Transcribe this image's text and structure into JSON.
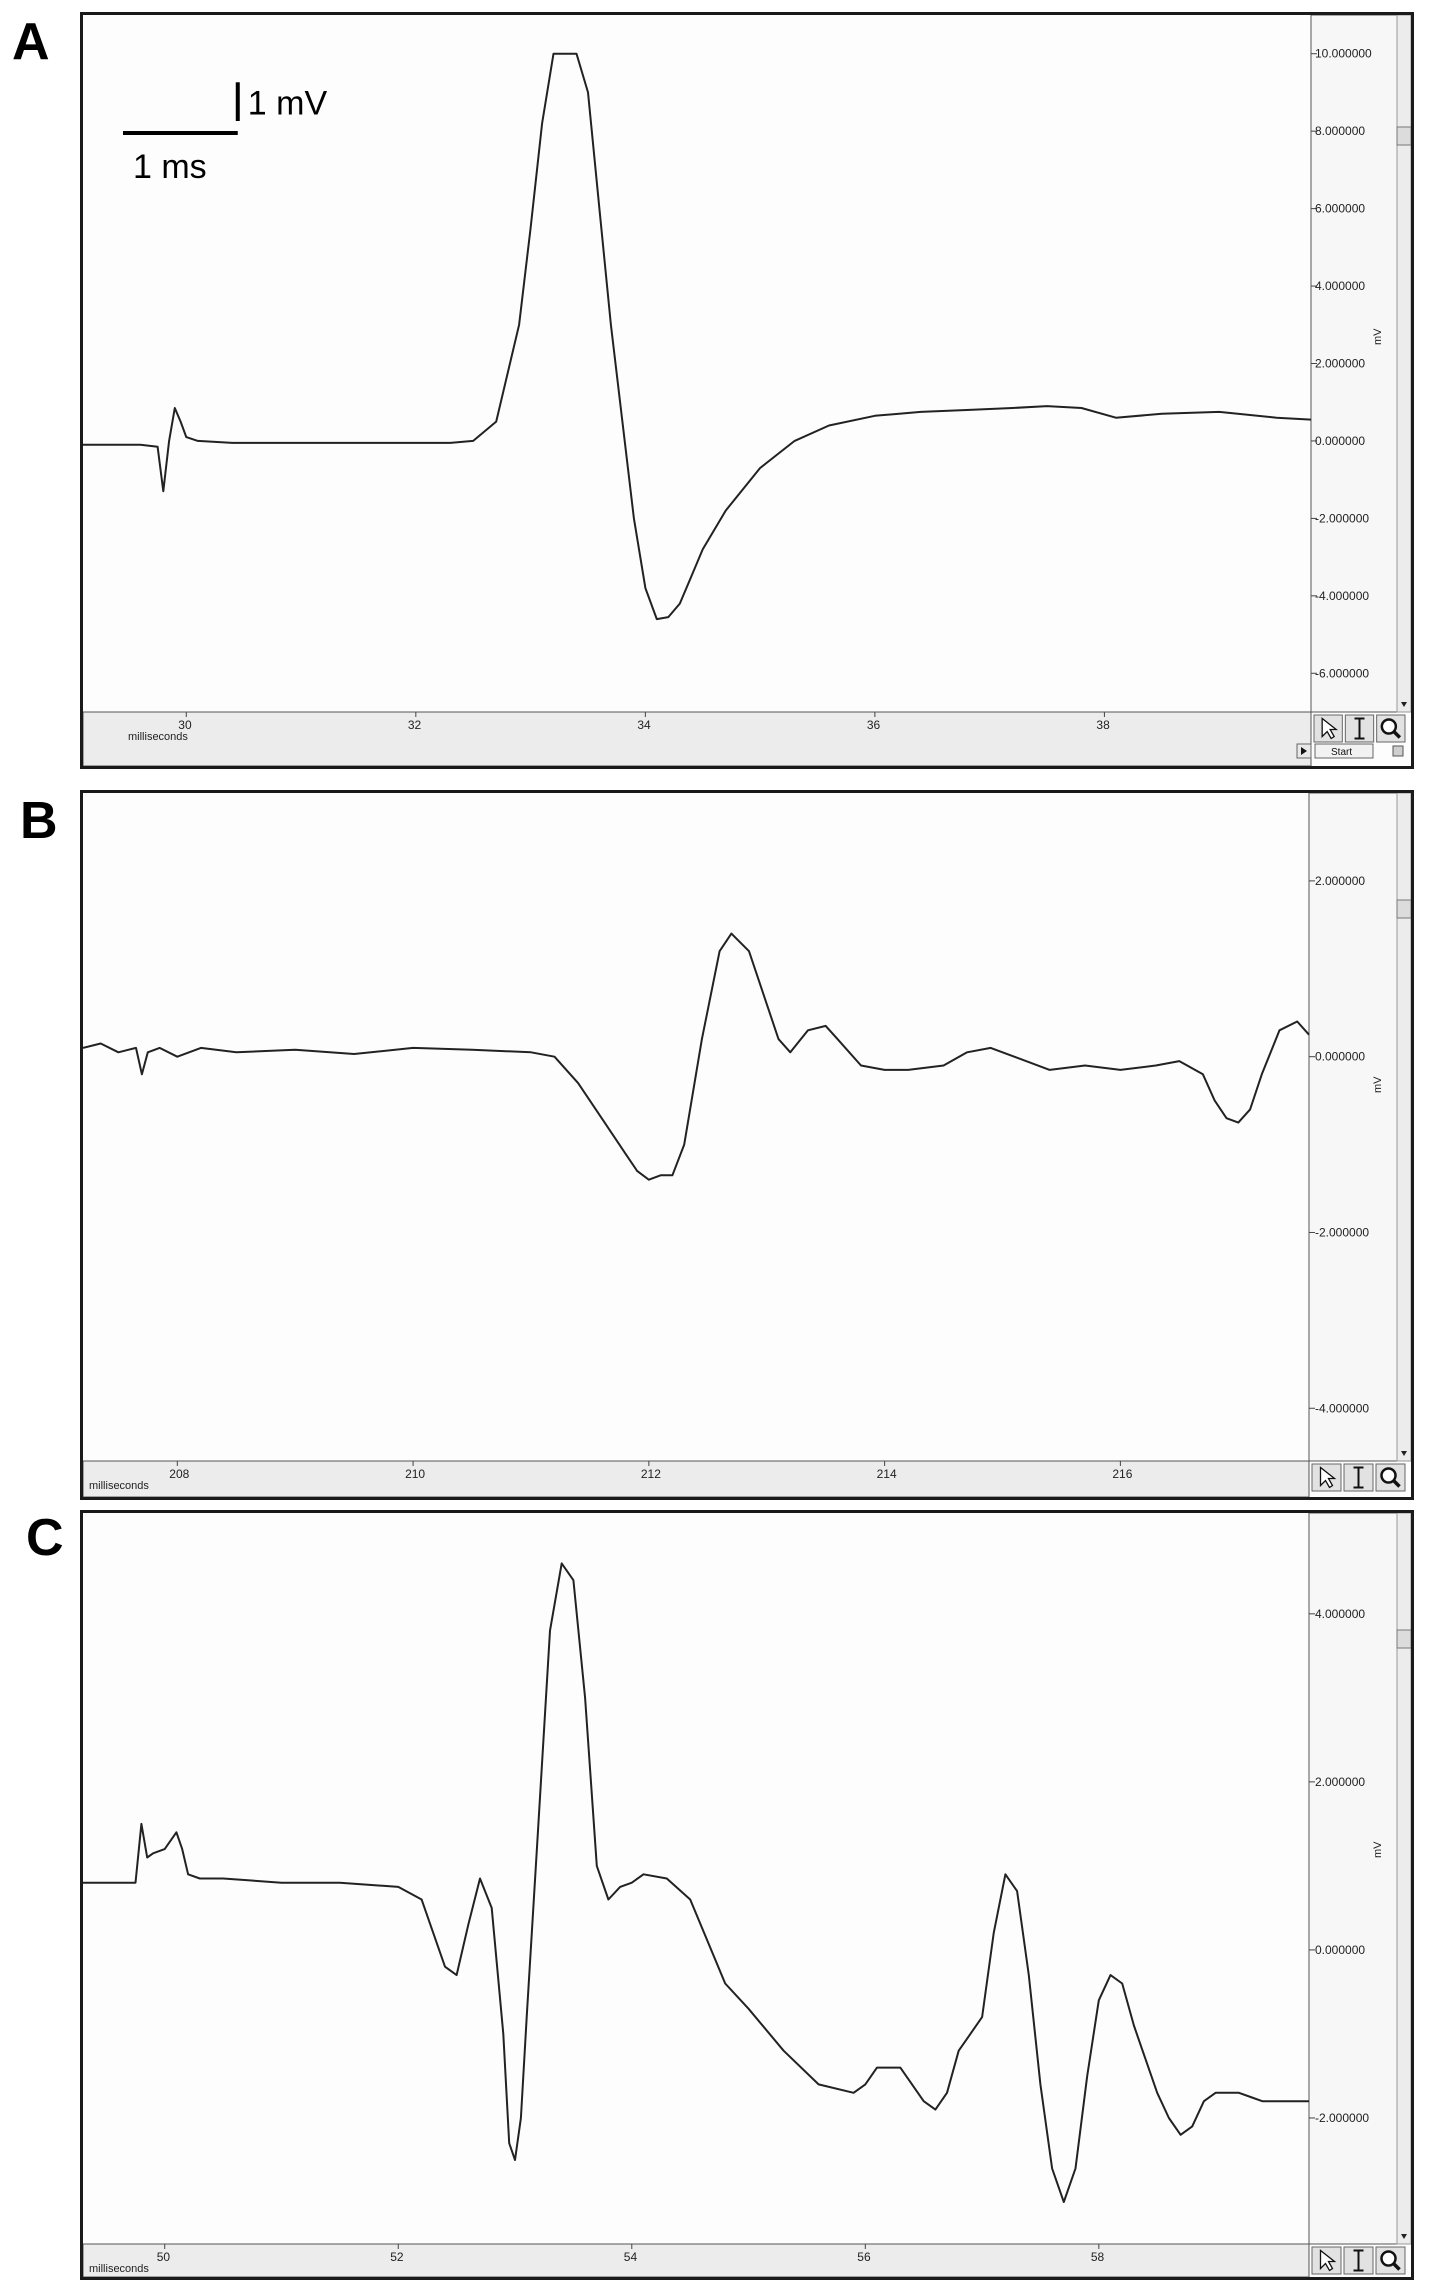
{
  "panels": [
    {
      "letter": "A",
      "scalebar": {
        "time_label": "1 ms",
        "voltage_label": "1 mV"
      }
    },
    {
      "letter": "B"
    },
    {
      "letter": "C"
    }
  ],
  "toolbar": {
    "start_label": "Start",
    "pointer_icon": "pointer-icon",
    "cursor_icon": "text-cursor-icon",
    "zoom_icon": "magnifier-icon"
  },
  "chart_data": [
    {
      "type": "line",
      "title": "",
      "xlabel": "milliseconds",
      "ylabel": "mV",
      "xlim": [
        29.1,
        39.8
      ],
      "ylim": [
        -7.0,
        11.0
      ],
      "xticks": [
        30,
        32,
        34,
        36,
        38
      ],
      "xtick_labels": [
        "30",
        "32",
        "34",
        "36",
        "38"
      ],
      "yticks": [
        10,
        8,
        6,
        4,
        2,
        0,
        -2,
        -4,
        -6
      ],
      "ytick_labels": [
        "10.000000",
        "8.000000",
        "6.000000",
        "4.000000",
        "2.000000",
        "0.000000",
        "-2.000000",
        "-4.000000",
        "-6.000000"
      ],
      "series": [
        {
          "x": [
            29.1,
            29.6,
            29.75,
            29.8,
            29.85,
            29.9,
            29.95,
            30.0,
            30.1,
            30.4,
            31.0,
            31.5,
            32.0,
            32.3,
            32.5,
            32.7,
            32.9,
            33.0,
            33.1,
            33.2,
            33.4,
            33.5,
            33.6,
            33.7,
            33.8,
            33.9,
            34.0,
            34.1,
            34.2,
            34.3,
            34.4,
            34.5,
            34.7,
            35.0,
            35.3,
            35.6,
            36.0,
            36.4,
            36.8,
            37.2,
            37.5,
            37.8,
            38.1,
            38.5,
            39.0,
            39.5,
            39.8
          ],
          "y": [
            -0.1,
            -0.1,
            -0.15,
            -1.3,
            0.0,
            0.85,
            0.5,
            0.1,
            0.0,
            -0.05,
            -0.05,
            -0.05,
            -0.05,
            -0.05,
            0.0,
            0.5,
            3.0,
            5.5,
            8.2,
            10.0,
            10.0,
            9.0,
            6.0,
            3.0,
            0.5,
            -2.0,
            -3.8,
            -4.6,
            -4.55,
            -4.2,
            -3.5,
            -2.8,
            -1.8,
            -0.7,
            0.0,
            0.4,
            0.65,
            0.75,
            0.8,
            0.85,
            0.9,
            0.85,
            0.6,
            0.7,
            0.75,
            0.6,
            0.55
          ]
        }
      ]
    },
    {
      "type": "line",
      "title": "",
      "xlabel": "milliseconds",
      "ylabel": "mV",
      "xlim": [
        207.2,
        217.6
      ],
      "ylim": [
        -4.6,
        3.0
      ],
      "xticks": [
        208,
        210,
        212,
        214,
        216
      ],
      "xtick_labels": [
        "208",
        "210",
        "212",
        "214",
        "216"
      ],
      "yticks": [
        2,
        0,
        -2,
        -4
      ],
      "ytick_labels": [
        "2.000000",
        "0.000000",
        "-2.000000",
        "-4.000000"
      ],
      "series": [
        {
          "x": [
            207.2,
            207.35,
            207.5,
            207.65,
            207.7,
            207.75,
            207.85,
            208.0,
            208.2,
            208.5,
            209.0,
            209.5,
            210.0,
            210.5,
            211.0,
            211.2,
            211.4,
            211.6,
            211.8,
            211.9,
            212.0,
            212.1,
            212.2,
            212.3,
            212.45,
            212.6,
            212.7,
            212.85,
            213.0,
            213.1,
            213.2,
            213.35,
            213.5,
            213.6,
            213.8,
            214.0,
            214.2,
            214.5,
            214.7,
            214.9,
            215.1,
            215.4,
            215.7,
            216.0,
            216.3,
            216.5,
            216.7,
            216.8,
            216.9,
            217.0,
            217.1,
            217.2,
            217.35,
            217.5,
            217.6
          ],
          "y": [
            0.1,
            0.15,
            0.05,
            0.1,
            -0.2,
            0.05,
            0.1,
            0.0,
            0.1,
            0.05,
            0.08,
            0.03,
            0.1,
            0.08,
            0.05,
            0.0,
            -0.3,
            -0.7,
            -1.1,
            -1.3,
            -1.4,
            -1.35,
            -1.35,
            -1.0,
            0.2,
            1.2,
            1.4,
            1.2,
            0.6,
            0.2,
            0.05,
            0.3,
            0.35,
            0.2,
            -0.1,
            -0.15,
            -0.15,
            -0.1,
            0.05,
            0.1,
            0.0,
            -0.15,
            -0.1,
            -0.15,
            -0.1,
            -0.05,
            -0.2,
            -0.5,
            -0.7,
            -0.75,
            -0.6,
            -0.2,
            0.3,
            0.4,
            0.25
          ]
        }
      ]
    },
    {
      "type": "line",
      "title": "",
      "xlabel": "milliseconds",
      "ylabel": "mV",
      "xlim": [
        49.3,
        59.8
      ],
      "ylim": [
        -3.5,
        5.2
      ],
      "xticks": [
        50,
        52,
        54,
        56,
        58
      ],
      "xtick_labels": [
        "50",
        "52",
        "54",
        "56",
        "58"
      ],
      "yticks": [
        4,
        2,
        0,
        -2
      ],
      "ytick_labels": [
        "4.000000",
        "2.000000",
        "0.000000",
        "-2.000000"
      ],
      "series": [
        {
          "x": [
            49.3,
            49.75,
            49.8,
            49.85,
            49.9,
            50.0,
            50.1,
            50.15,
            50.2,
            50.3,
            50.5,
            51.0,
            51.5,
            52.0,
            52.2,
            52.4,
            52.5,
            52.6,
            52.7,
            52.8,
            52.9,
            52.95,
            53.0,
            53.05,
            53.1,
            53.2,
            53.3,
            53.4,
            53.5,
            53.6,
            53.7,
            53.8,
            53.9,
            54.0,
            54.1,
            54.3,
            54.5,
            54.8,
            55.0,
            55.3,
            55.6,
            55.9,
            56.0,
            56.1,
            56.3,
            56.5,
            56.6,
            56.7,
            56.8,
            56.9,
            57.0,
            57.1,
            57.2,
            57.3,
            57.4,
            57.5,
            57.6,
            57.7,
            57.8,
            57.9,
            58.0,
            58.1,
            58.2,
            58.3,
            58.4,
            58.5,
            58.6,
            58.7,
            58.8,
            58.9,
            59.0,
            59.1,
            59.2,
            59.3,
            59.4,
            59.5,
            59.6,
            59.7,
            59.8
          ],
          "y": [
            0.8,
            0.8,
            1.5,
            1.1,
            1.15,
            1.2,
            1.4,
            1.2,
            0.9,
            0.85,
            0.85,
            0.8,
            0.8,
            0.75,
            0.6,
            -0.2,
            -0.3,
            0.3,
            0.85,
            0.5,
            -1.0,
            -2.3,
            -2.5,
            -2.0,
            -0.8,
            1.5,
            3.8,
            4.6,
            4.4,
            3.0,
            1.0,
            0.6,
            0.75,
            0.8,
            0.9,
            0.85,
            0.6,
            -0.4,
            -0.7,
            -1.2,
            -1.6,
            -1.7,
            -1.6,
            -1.4,
            -1.4,
            -1.8,
            -1.9,
            -1.7,
            -1.2,
            -1.0,
            -0.8,
            0.2,
            0.9,
            0.7,
            -0.3,
            -1.6,
            -2.6,
            -3.0,
            -2.6,
            -1.5,
            -0.6,
            -0.3,
            -0.4,
            -0.9,
            -1.3,
            -1.7,
            -2.0,
            -2.2,
            -2.1,
            -1.8,
            -1.7,
            -1.7,
            -1.7,
            -1.75,
            -1.8,
            -1.8,
            -1.8,
            -1.8,
            -1.8
          ]
        }
      ]
    }
  ]
}
